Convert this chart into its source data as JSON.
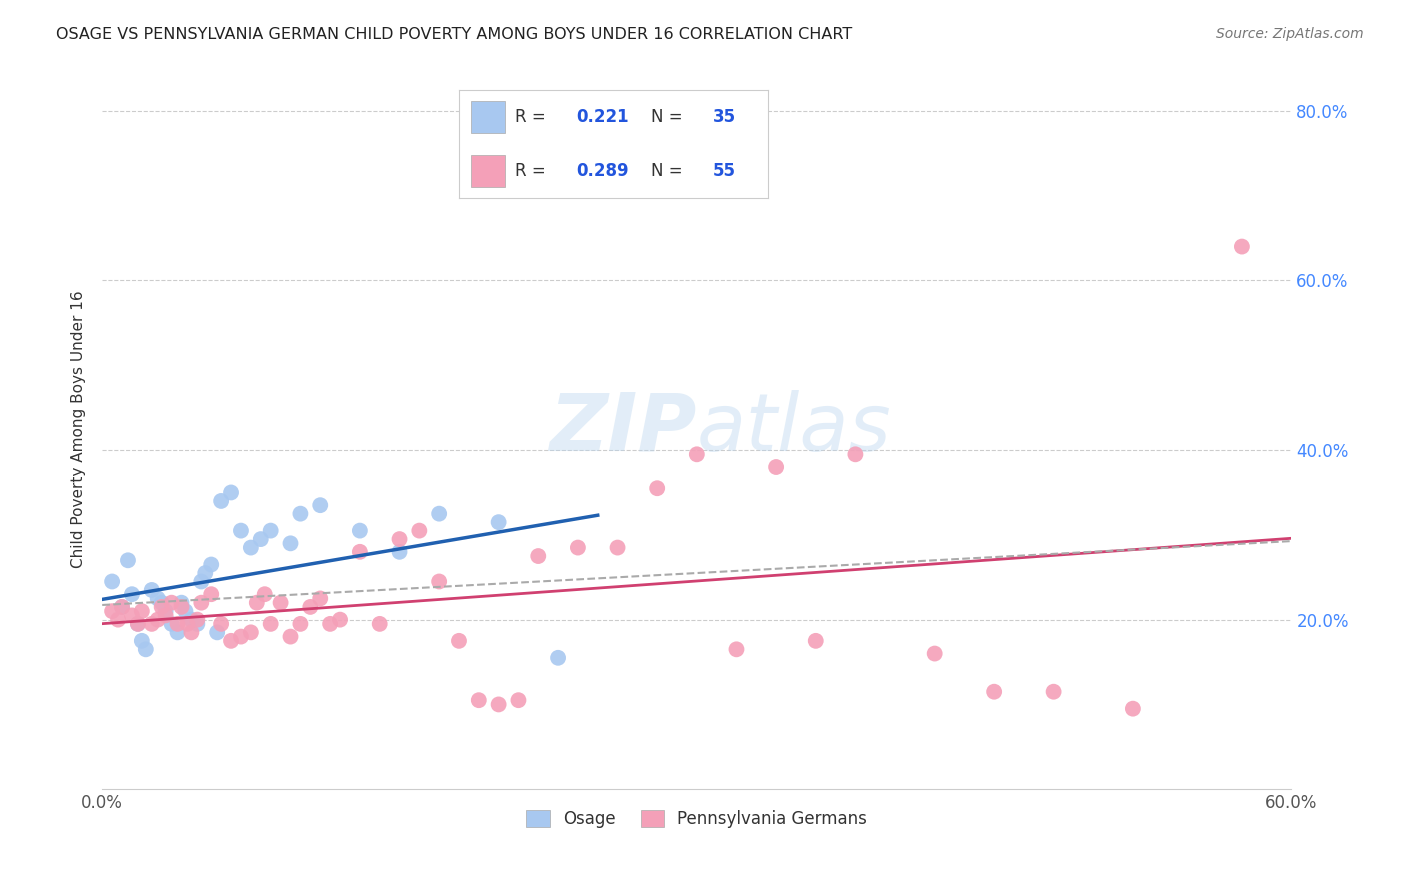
{
  "title": "OSAGE VS PENNSYLVANIA GERMAN CHILD POVERTY AMONG BOYS UNDER 16 CORRELATION CHART",
  "source": "Source: ZipAtlas.com",
  "ylabel": "Child Poverty Among Boys Under 16",
  "watermark": "ZIPatlas",
  "osage_color": "#A8C8F0",
  "pg_color": "#F4A0B8",
  "osage_line_color": "#2060B0",
  "pg_line_color": "#D04070",
  "trend_line_color": "#AAAAAA",
  "xlim": [
    0.0,
    0.6
  ],
  "ylim": [
    0.0,
    0.85
  ],
  "x_tick_positions": [
    0.0,
    0.1,
    0.2,
    0.3,
    0.4,
    0.5,
    0.6
  ],
  "x_tick_show": [
    "0.0%",
    "",
    "",
    "",
    "",
    "",
    "60.0%"
  ],
  "y_ticks": [
    0.2,
    0.4,
    0.6,
    0.8
  ],
  "y_tick_labels": [
    "20.0%",
    "40.0%",
    "60.0%",
    "80.0%"
  ],
  "osage_x": [
    0.005,
    0.01,
    0.013,
    0.015,
    0.018,
    0.02,
    0.022,
    0.025,
    0.028,
    0.03,
    0.032,
    0.035,
    0.038,
    0.04,
    0.042,
    0.045,
    0.048,
    0.05,
    0.052,
    0.055,
    0.058,
    0.06,
    0.065,
    0.07,
    0.075,
    0.08,
    0.085,
    0.095,
    0.1,
    0.11,
    0.13,
    0.15,
    0.17,
    0.2,
    0.23
  ],
  "osage_y": [
    0.245,
    0.215,
    0.27,
    0.23,
    0.195,
    0.175,
    0.165,
    0.235,
    0.225,
    0.22,
    0.21,
    0.195,
    0.185,
    0.22,
    0.21,
    0.2,
    0.195,
    0.245,
    0.255,
    0.265,
    0.185,
    0.34,
    0.35,
    0.305,
    0.285,
    0.295,
    0.305,
    0.29,
    0.325,
    0.335,
    0.305,
    0.28,
    0.325,
    0.315,
    0.155
  ],
  "pg_x": [
    0.005,
    0.008,
    0.01,
    0.015,
    0.018,
    0.02,
    0.025,
    0.028,
    0.03,
    0.032,
    0.035,
    0.038,
    0.04,
    0.043,
    0.045,
    0.048,
    0.05,
    0.055,
    0.06,
    0.065,
    0.07,
    0.075,
    0.078,
    0.082,
    0.085,
    0.09,
    0.095,
    0.1,
    0.105,
    0.11,
    0.115,
    0.12,
    0.13,
    0.14,
    0.15,
    0.16,
    0.17,
    0.18,
    0.19,
    0.2,
    0.21,
    0.22,
    0.24,
    0.26,
    0.28,
    0.3,
    0.32,
    0.34,
    0.36,
    0.38,
    0.42,
    0.45,
    0.48,
    0.52,
    0.575
  ],
  "pg_y": [
    0.21,
    0.2,
    0.215,
    0.205,
    0.195,
    0.21,
    0.195,
    0.2,
    0.215,
    0.205,
    0.22,
    0.195,
    0.215,
    0.195,
    0.185,
    0.2,
    0.22,
    0.23,
    0.195,
    0.175,
    0.18,
    0.185,
    0.22,
    0.23,
    0.195,
    0.22,
    0.18,
    0.195,
    0.215,
    0.225,
    0.195,
    0.2,
    0.28,
    0.195,
    0.295,
    0.305,
    0.245,
    0.175,
    0.105,
    0.1,
    0.105,
    0.275,
    0.285,
    0.285,
    0.355,
    0.395,
    0.165,
    0.38,
    0.175,
    0.395,
    0.16,
    0.115,
    0.115,
    0.095,
    0.64
  ]
}
